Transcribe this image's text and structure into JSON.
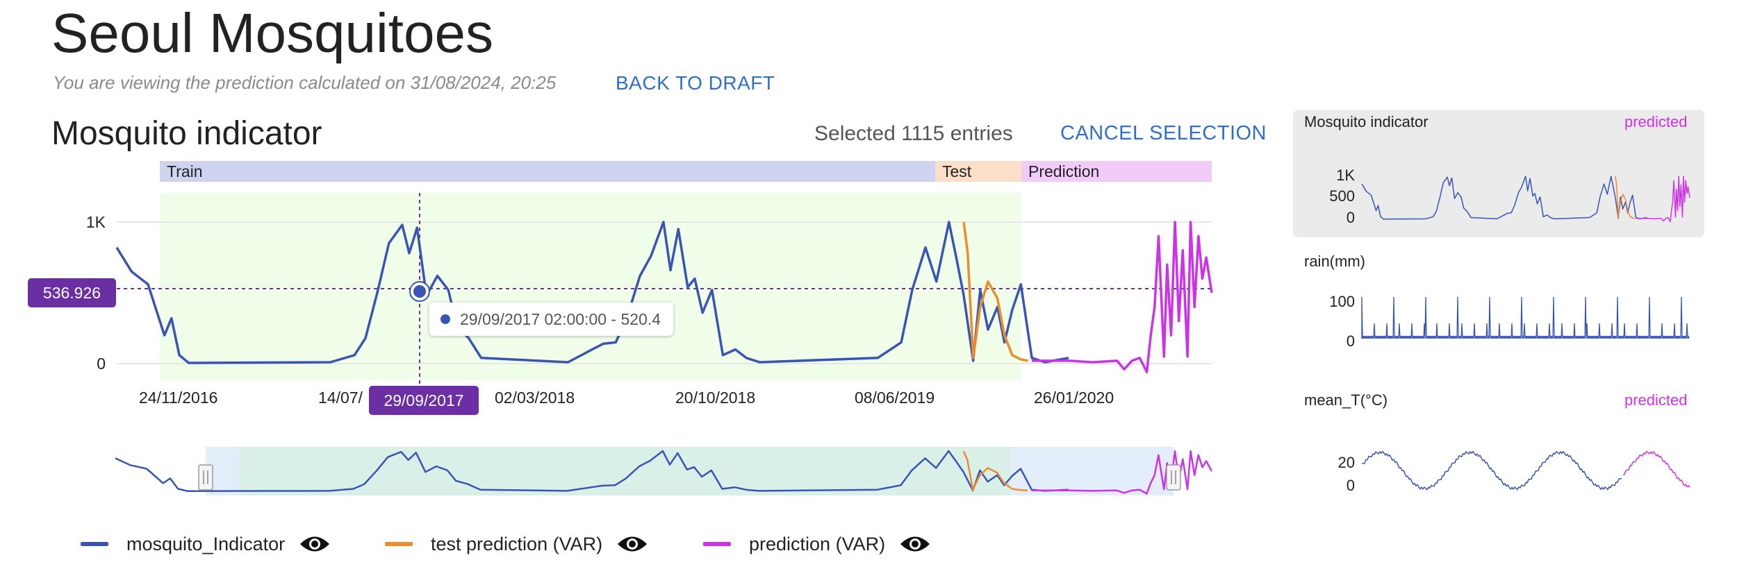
{
  "header": {
    "title": "Seoul Mosquitoes",
    "subtitle": "You are viewing the prediction calculated on 31/08/2024, 20:25",
    "back_link": "BACK TO DRAFT"
  },
  "section": {
    "title": "Mosquito indicator",
    "selected_text": "Selected 1115 entries",
    "cancel_link": "CANCEL SELECTION"
  },
  "phases": {
    "train": "Train",
    "test": "Test",
    "prediction": "Prediction"
  },
  "colors": {
    "observed": "#3a54b4",
    "test": "#ec8c2c",
    "prediction": "#cc33e6",
    "badge": "#6b2fa3",
    "train_bg": "#f0fde9",
    "link": "#2f6fcc"
  },
  "crosshair": {
    "y_value": "536.926",
    "x_value": "29/09/2017"
  },
  "tooltip": {
    "text": "29/09/2017 02:00:00 - 520.4"
  },
  "legend": [
    {
      "label": "mosquito_Indicator",
      "icon": "eye-icon"
    },
    {
      "label": "test prediction (VAR)",
      "icon": "eye-icon"
    },
    {
      "label": "prediction (VAR)",
      "icon": "eye-icon"
    }
  ],
  "side_panels": [
    {
      "title": "Mosquito indicator",
      "tag": "predicted",
      "ticks": [
        "1K",
        "500",
        "0"
      ]
    },
    {
      "title": "rain(mm)",
      "tag": "",
      "ticks": [
        "100",
        "0"
      ]
    },
    {
      "title": "mean_T(°C)",
      "tag": "predicted",
      "ticks": [
        "20",
        "0"
      ]
    }
  ],
  "chart_data": [
    {
      "type": "line",
      "title": "Mosquito indicator",
      "ylim": [
        0,
        1100
      ],
      "y_ticks": [
        "1K",
        "0"
      ],
      "x_ticks": [
        "24/11/2016",
        "14/07/",
        "02/03/2018",
        "20/10/2018",
        "08/06/2019",
        "26/01/2020"
      ],
      "grid": true,
      "legend_position": "bottom",
      "series": [
        {
          "name": "mosquito_Indicator",
          "color": "#3a54b4",
          "x": [
            "2016-08-01",
            "2016-08-20",
            "2016-09-10",
            "2016-10-01",
            "2016-10-10",
            "2016-10-20",
            "2016-11-01",
            "2017-05-01",
            "2017-06-01",
            "2017-06-15",
            "2017-07-01",
            "2017-07-15",
            "2017-08-01",
            "2017-08-10",
            "2017-08-20",
            "2017-09-01",
            "2017-09-15",
            "2017-09-29",
            "2017-10-10",
            "2017-10-25",
            "2017-11-10",
            "2018-03-01",
            "2018-04-01",
            "2018-04-15",
            "2018-05-01",
            "2018-05-15",
            "2018-06-01",
            "2018-06-15",
            "2018-07-01",
            "2018-07-10",
            "2018-07-20",
            "2018-08-01",
            "2018-08-10",
            "2018-08-20",
            "2018-09-01",
            "2018-09-15",
            "2018-10-01",
            "2018-10-15",
            "2018-11-01",
            "2019-04-01",
            "2019-05-01",
            "2019-05-15",
            "2019-06-01",
            "2019-06-15",
            "2019-07-01",
            "2019-07-10",
            "2019-07-20",
            "2019-08-01",
            "2019-08-10",
            "2019-08-20",
            "2019-09-01",
            "2019-09-10",
            "2019-09-20",
            "2019-10-01",
            "2019-10-15",
            "2019-11-01",
            "2019-12-01"
          ],
          "values": [
            820,
            650,
            560,
            200,
            320,
            60,
            5,
            10,
            60,
            180,
            520,
            850,
            980,
            780,
            960,
            480,
            620,
            520,
            260,
            180,
            40,
            10,
            100,
            140,
            150,
            320,
            620,
            760,
            1000,
            660,
            950,
            540,
            600,
            360,
            520,
            60,
            100,
            40,
            10,
            40,
            150,
            520,
            820,
            580,
            1000,
            760,
            480,
            20,
            520,
            240,
            400,
            150,
            380,
            560,
            40,
            10,
            40
          ]
        },
        {
          "name": "test prediction (VAR)",
          "color": "#ec8c2c",
          "x": [
            "2019-07-20",
            "2019-07-25",
            "2019-08-01",
            "2019-08-10",
            "2019-08-20",
            "2019-09-01",
            "2019-09-10",
            "2019-09-20",
            "2019-10-01",
            "2019-10-10"
          ],
          "values": [
            1000,
            780,
            40,
            400,
            580,
            460,
            200,
            60,
            30,
            20
          ]
        },
        {
          "name": "prediction (VAR)",
          "color": "#cc33e6",
          "x": [
            "2019-10-15",
            "2019-11-01",
            "2019-12-01",
            "2020-01-01",
            "2020-02-01",
            "2020-02-10",
            "2020-02-20",
            "2020-03-01",
            "2020-03-10",
            "2020-03-15",
            "2020-03-20",
            "2020-03-25",
            "2020-04-01",
            "2020-04-05",
            "2020-04-10",
            "2020-04-15",
            "2020-04-20",
            "2020-04-25",
            "2020-05-01",
            "2020-05-05",
            "2020-05-10",
            "2020-05-15",
            "2020-05-20",
            "2020-05-25",
            "2020-06-01"
          ],
          "values": [
            20,
            20,
            20,
            10,
            20,
            -40,
            20,
            40,
            -60,
            200,
            400,
            900,
            50,
            700,
            200,
            1000,
            300,
            800,
            50,
            1000,
            400,
            900,
            600,
            750,
            500
          ]
        }
      ]
    },
    {
      "type": "line",
      "title": "Mosquito indicator",
      "y_ticks": [
        "1K",
        "500",
        "0"
      ],
      "series": [
        {
          "name": "mosquito_Indicator"
        },
        {
          "name": "prediction (VAR)"
        }
      ]
    },
    {
      "type": "line",
      "title": "rain(mm)",
      "y_ticks": [
        "100",
        "0"
      ]
    },
    {
      "type": "line",
      "title": "mean_T(°C)",
      "y_ticks": [
        "20",
        "0"
      ]
    }
  ]
}
